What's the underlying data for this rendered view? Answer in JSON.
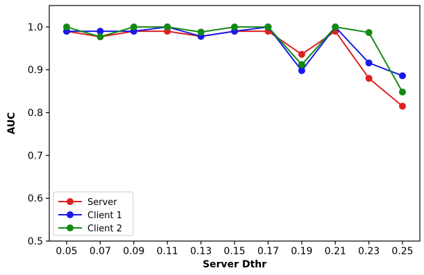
{
  "chart_data": {
    "type": "line",
    "title": "",
    "xlabel": "Server Dthr",
    "ylabel": "AUC",
    "x": [
      "0.05",
      "0.07",
      "0.09",
      "0.11",
      "0.13",
      "0.15",
      "0.17",
      "0.19",
      "0.21",
      "0.23",
      "0.25"
    ],
    "ylim": [
      0.5,
      1.05
    ],
    "yticks": [
      "0.5",
      "0.6",
      "0.7",
      "0.8",
      "0.9",
      "1.0"
    ],
    "grid": false,
    "legend_position": "lower-left",
    "series": [
      {
        "name": "Server",
        "color": "#dd2020",
        "values": [
          0.99,
          0.977,
          0.99,
          0.99,
          0.978,
          0.99,
          0.99,
          0.936,
          0.99,
          0.88,
          0.815
        ]
      },
      {
        "name": "Client 1",
        "color": "#1a1aeb",
        "values": [
          0.99,
          0.99,
          0.99,
          1.0,
          0.978,
          0.99,
          1.0,
          0.898,
          1.0,
          0.916,
          0.886
        ]
      },
      {
        "name": "Client 2",
        "color": "#138a13",
        "values": [
          1.0,
          0.977,
          1.0,
          1.0,
          0.988,
          1.0,
          1.0,
          0.912,
          1.0,
          0.987,
          0.848
        ]
      }
    ]
  }
}
